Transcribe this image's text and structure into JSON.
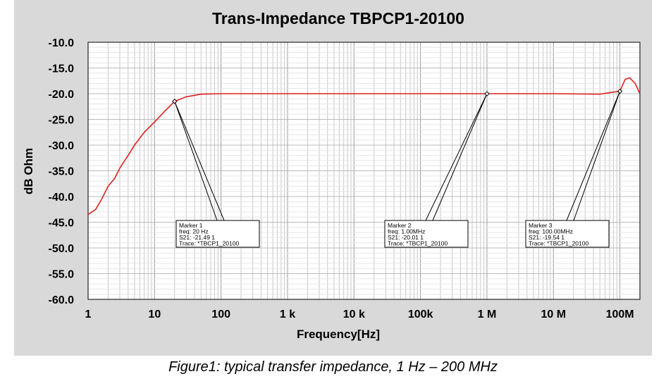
{
  "chart_data": {
    "type": "line",
    "title": "Trans-Impedance TBPCP1-20100",
    "xlabel": "Frequency[Hz]",
    "ylabel": "dB Ohm",
    "x_scale": "log",
    "xlim": [
      1,
      200000000
    ],
    "ylim": [
      -60,
      -10
    ],
    "grid": true,
    "x_ticks": [
      {
        "v": 1,
        "label": "1"
      },
      {
        "v": 10,
        "label": "10"
      },
      {
        "v": 100,
        "label": "100"
      },
      {
        "v": 1000,
        "label": "1  k"
      },
      {
        "v": 10000,
        "label": "10 k"
      },
      {
        "v": 100000,
        "label": "100k"
      },
      {
        "v": 1000000,
        "label": "1  M"
      },
      {
        "v": 10000000,
        "label": "10 M"
      },
      {
        "v": 100000000,
        "label": "100M"
      }
    ],
    "y_ticks": [
      "-10.0",
      "-15.0",
      "-20.0",
      "-25.0",
      "-30.0",
      "-35.0",
      "-40.0",
      "-45.0",
      "-50.0",
      "-55.0",
      "-60.0"
    ],
    "series": [
      {
        "color": "#e02020",
        "x": [
          1,
          1.3,
          1.6,
          2,
          2.5,
          3,
          4,
          5,
          7,
          10,
          14,
          20,
          30,
          50,
          100,
          1000,
          100000,
          1000000,
          10000000,
          50000000,
          100000000,
          120000000,
          140000000,
          170000000,
          200000000
        ],
        "y": [
          -43.5,
          -42.5,
          -40.5,
          -38,
          -36.5,
          -34.5,
          -32,
          -30,
          -27.5,
          -25.5,
          -23.5,
          -21.5,
          -20.6,
          -20.1,
          -20,
          -20,
          -20,
          -20,
          -20,
          -20.1,
          -19.5,
          -17.2,
          -16.9,
          -18,
          -20
        ]
      }
    ],
    "markers": [
      {
        "x": 20,
        "y": -21.49,
        "lines": [
          "Marker 1",
          "freq: 20  Hz",
          "S21: -21.49 1",
          "Trace: *TBCP1_20100"
        ]
      },
      {
        "x": 1000000,
        "y": -20.01,
        "lines": [
          "Marker 2",
          "freq: 1.00MHz",
          "S21: -20.01 1",
          "Trace: *TBCP1_20100"
        ]
      },
      {
        "x": 100000000,
        "y": -19.54,
        "lines": [
          "Marker 3",
          "freq: 100.00MHz",
          "S21: -19.54 1",
          "Trace: *TBCP1_20100"
        ]
      }
    ]
  },
  "caption": "Figure1: typical transfer impedance, 1 Hz – 200 MHz"
}
